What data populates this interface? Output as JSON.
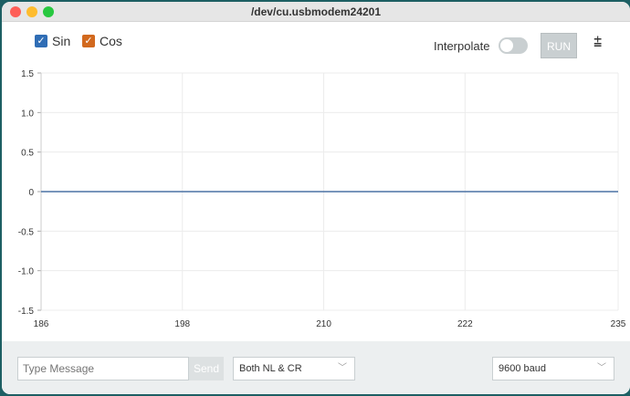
{
  "window": {
    "title": "/dev/cu.usbmodem24201"
  },
  "toolbar": {
    "series_toggles": [
      {
        "label": "Sin",
        "color": "#2f6db5",
        "checked": true
      },
      {
        "label": "Cos",
        "color": "#d2691e",
        "checked": true
      }
    ],
    "interpolate_label": "Interpolate",
    "interpolate_on": false,
    "run_label": "RUN",
    "clear_icon": "clear-list-icon"
  },
  "chart_data": {
    "type": "line",
    "x_ticks": [
      "186",
      "198",
      "210",
      "222",
      "235"
    ],
    "y_ticks": [
      "1.5",
      "1.0",
      "0.5",
      "0",
      "-0.5",
      "-1.0",
      "-1.5"
    ],
    "xlim": [
      186,
      235
    ],
    "ylim": [
      -1.5,
      1.5
    ],
    "grid": true,
    "series": [
      {
        "name": "Cos",
        "color": "#d2691e",
        "x": [
          186,
          235
        ],
        "y": [
          0,
          0
        ]
      },
      {
        "name": "Sin",
        "color": "#2f6db5",
        "x": [
          186,
          235
        ],
        "y": [
          0,
          0
        ]
      }
    ]
  },
  "footer": {
    "message_placeholder": "Type Message",
    "send_label": "Send",
    "line_ending": "Both NL & CR",
    "baud": "9600 baud"
  }
}
